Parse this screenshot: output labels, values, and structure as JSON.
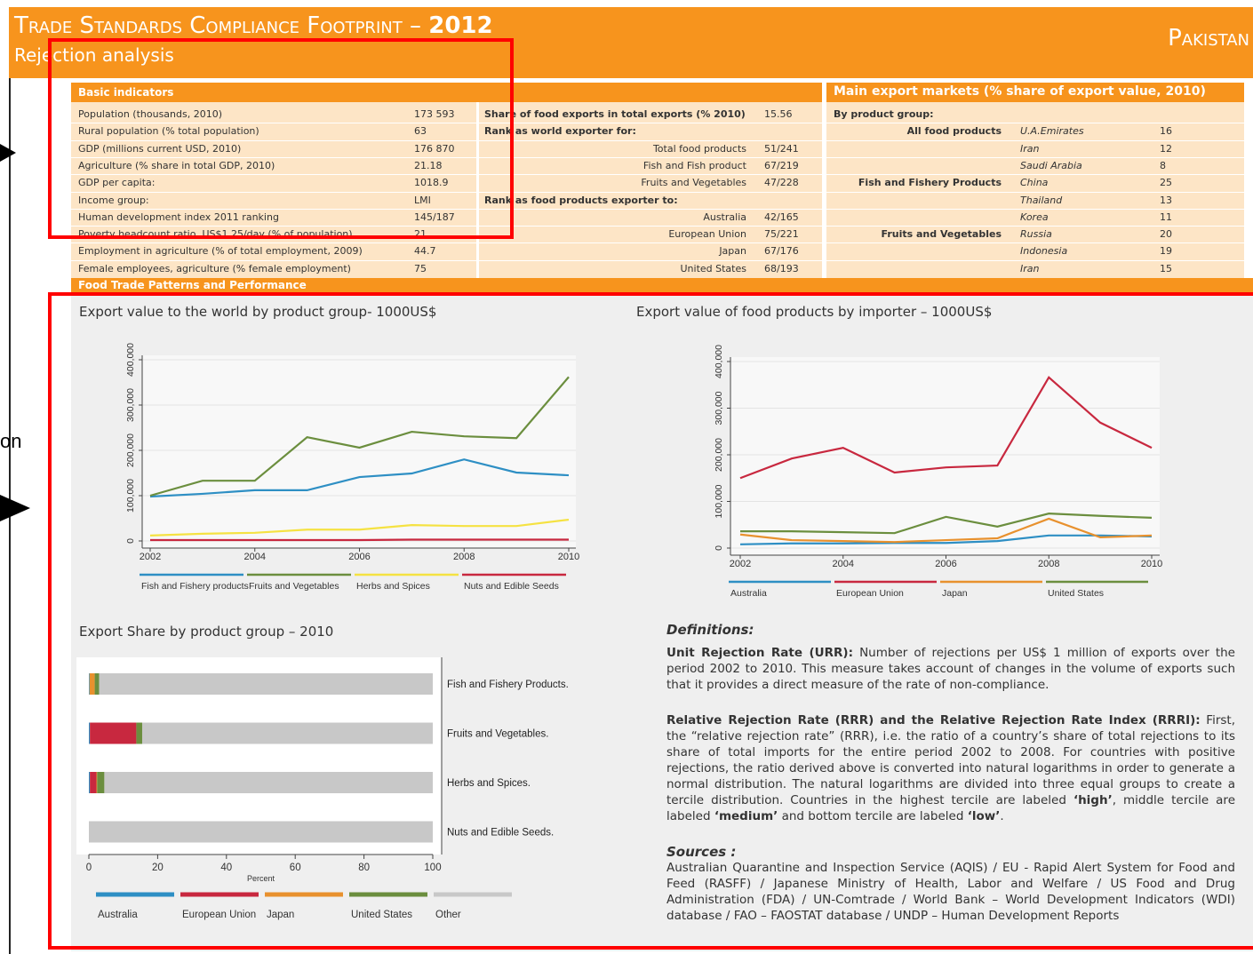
{
  "header": {
    "title": "Trade Standards Compliance Footprint –",
    "year": "2012",
    "subtitle": "Rejection analysis",
    "country": "Pakistan"
  },
  "side_text": "on",
  "indicators": {
    "title": "Basic indicators",
    "rows": [
      [
        "Population (thousands, 2010)",
        "173 593"
      ],
      [
        "Rural population (% total population)",
        "63"
      ],
      [
        "GDP (millions current USD, 2010)",
        "176 870"
      ],
      [
        "Agriculture (% share in total GDP, 2010)",
        "21.18"
      ],
      [
        "GDP per capita:",
        "1018.9"
      ],
      [
        "Income group:",
        "LMI"
      ],
      [
        "Human development index 2011 ranking",
        "145/187"
      ],
      [
        "Poverty headcount ratio, US$1.25/day (% of population)",
        "21"
      ],
      [
        "Employment in agriculture (% of total employment, 2009)",
        "44.7"
      ],
      [
        "Female employees, agriculture (% female employment)",
        "75"
      ]
    ]
  },
  "trade": {
    "rows": [
      {
        "heading": "Share of food exports in total exports (% 2010)",
        "value": "15.56"
      },
      {
        "heading": "Rank as world exporter for:"
      },
      {
        "label": "Total food products",
        "value": "51/241"
      },
      {
        "label": "Fish and Fish product",
        "value": "67/219"
      },
      {
        "label": "Fruits and Vegetables",
        "value": "47/228"
      },
      {
        "heading": "Rank as food products exporter to:"
      },
      {
        "label": "Australia",
        "value": "42/165"
      },
      {
        "label": "European Union",
        "value": "75/221"
      },
      {
        "label": "Japan",
        "value": "67/176"
      },
      {
        "label": "United States",
        "value": "68/193"
      }
    ]
  },
  "markets": {
    "title": "Main export markets (% share of export value, 2010)",
    "subtitle": "By product group:",
    "groups": [
      {
        "name": "All food products",
        "items": [
          {
            "country": "U.A.Emirates",
            "share": 16
          },
          {
            "country": "Iran",
            "share": 12
          },
          {
            "country": "Saudi Arabia",
            "share": 8
          }
        ]
      },
      {
        "name": "Fish and Fishery Products",
        "items": [
          {
            "country": "China",
            "share": 25
          },
          {
            "country": "Thailand",
            "share": 13
          },
          {
            "country": "Korea",
            "share": 11
          }
        ]
      },
      {
        "name": "Fruits and Vegetables",
        "items": [
          {
            "country": "Russia",
            "share": 20
          },
          {
            "country": "Indonesia",
            "share": 19
          },
          {
            "country": "Iran",
            "share": 15
          }
        ]
      }
    ]
  },
  "section_title": "Food Trade Patterns and Performance",
  "chart_data": [
    {
      "type": "line",
      "title": "Export value to the world by product group- 1000US$",
      "x": [
        2002,
        2003,
        2004,
        2005,
        2006,
        2007,
        2008,
        2009,
        2010
      ],
      "xlim": [
        2002,
        2010
      ],
      "xticks": [
        2002,
        2004,
        2006,
        2008,
        2010
      ],
      "ylim": [
        0,
        400000
      ],
      "yticks": [
        0,
        {
          "value": 100000,
          "label": "100,000"
        },
        {
          "value": 200000,
          "label": "200,000"
        },
        {
          "value": 300000,
          "label": "300,000"
        },
        {
          "value": 400000,
          "label": "400,000"
        }
      ],
      "grid": true,
      "series": [
        {
          "name": "Fish and Fishery products",
          "color": "#2e8fc4",
          "values": [
            98000,
            104000,
            112000,
            112000,
            141000,
            149000,
            180000,
            151000,
            145000
          ]
        },
        {
          "name": "Fruits and Vegetables",
          "color": "#6b8e3e",
          "values": [
            100000,
            133000,
            133000,
            229000,
            206000,
            241000,
            231000,
            227000,
            362000
          ]
        },
        {
          "name": "Herbs and Spices",
          "color": "#f5e242",
          "values": [
            12000,
            16000,
            18000,
            25000,
            25000,
            35000,
            33000,
            33000,
            47000
          ]
        },
        {
          "name": "Nuts and Edible Seeds",
          "color": "#c8283f",
          "values": [
            2000,
            2000,
            2000,
            2000,
            2000,
            3000,
            3000,
            3000,
            3000
          ]
        }
      ]
    },
    {
      "type": "line",
      "title": "Export value of food products by importer – 1000US$",
      "x": [
        2002,
        2003,
        2004,
        2005,
        2006,
        2007,
        2008,
        2009,
        2010
      ],
      "xlim": [
        2002,
        2010
      ],
      "xticks": [
        2002,
        2004,
        2006,
        2008,
        2010
      ],
      "ylim": [
        0,
        400000
      ],
      "yticks": [
        0,
        {
          "value": 100000,
          "label": "100,000"
        },
        {
          "value": 200000,
          "label": "200,000"
        },
        {
          "value": 300000,
          "label": "300,000"
        },
        {
          "value": 400000,
          "label": "400,000"
        }
      ],
      "grid": true,
      "series": [
        {
          "name": "Australia",
          "color": "#2e8fc4",
          "values": [
            8000,
            10000,
            10000,
            11000,
            11000,
            15000,
            27000,
            27000,
            25000
          ]
        },
        {
          "name": "European Union",
          "color": "#c8283f",
          "values": [
            150000,
            192000,
            215000,
            162000,
            173000,
            177000,
            366000,
            269000,
            215000
          ]
        },
        {
          "name": "Japan",
          "color": "#e8912e",
          "values": [
            29000,
            17000,
            15000,
            13000,
            17000,
            21000,
            63000,
            23000,
            27000
          ]
        },
        {
          "name": "United States",
          "color": "#6b8e3e",
          "values": [
            36000,
            36000,
            34000,
            32000,
            67000,
            46000,
            74000,
            69000,
            65000
          ]
        }
      ]
    },
    {
      "type": "stacked_bar",
      "title": "Export Share by product group – 2010",
      "xlabel": "Percent",
      "categories": [
        "Fish and Fishery Products.",
        "Fruits and Vegetables.",
        "Herbs and Spices.",
        "Nuts and Edible Seeds."
      ],
      "xlim": [
        0,
        100
      ],
      "xticks": [
        0,
        20,
        40,
        60,
        80,
        100
      ],
      "series": [
        {
          "name": "Australia",
          "color": "#2e8fc4",
          "values": [
            0.2,
            0.3,
            0.3,
            0
          ]
        },
        {
          "name": "European Union",
          "color": "#c8283f",
          "values": [
            0,
            13.5,
            1.9,
            0
          ]
        },
        {
          "name": "Japan",
          "color": "#e8912e",
          "values": [
            1.5,
            0,
            0.2,
            0
          ]
        },
        {
          "name": "United States",
          "color": "#6b8e3e",
          "values": [
            1.3,
            1.7,
            2.1,
            0
          ]
        },
        {
          "name": "Other",
          "color": "#c8c8c8",
          "values": [
            97,
            84.5,
            95.5,
            100
          ]
        }
      ]
    }
  ],
  "definitions": {
    "title": "Definitions:",
    "items": [
      {
        "term": "Unit Rejection Rate (URR):",
        "text": [
          "Number of rejections per US$ 1 million of exports over the period 2002 to 2010. This measure takes account of changes in the volume of exports such that it provides a direct measure of the rate of non-compliance."
        ]
      },
      {
        "term": "Relative Rejection Rate (RRR) and the Relative Rejection Rate Index (RRRI):",
        "text": [
          "First, the “relative rejection rate” (RRR), i.e. the ratio of a country’s share of total rejections to its share of total imports for the entire period 2002 to 2008. For countries with positive rejections, the ratio derived above is converted into natural logarithms in order to generate a normal distribution. The natural logarithms are divided into three equal groups to create a tercile distribution. Countries in the highest tercile are labeled ",
          "‘high’",
          ", middle tercile are labeled ",
          "‘medium’",
          " and bottom tercile are labeled ",
          "‘low’",
          "."
        ]
      }
    ]
  },
  "sources": {
    "title": "Sources :",
    "text": "Australian Quarantine and Inspection Service (AQIS) / EU - Rapid Alert System for Food and Feed (RASFF) / Japanese Ministry of Health, Labor and Welfare / US Food and Drug Administration (FDA) / UN-Comtrade / World Bank – World Development Indicators (WDI) database / FAO – FAOSTAT database / UNDP – Human Development Reports"
  }
}
